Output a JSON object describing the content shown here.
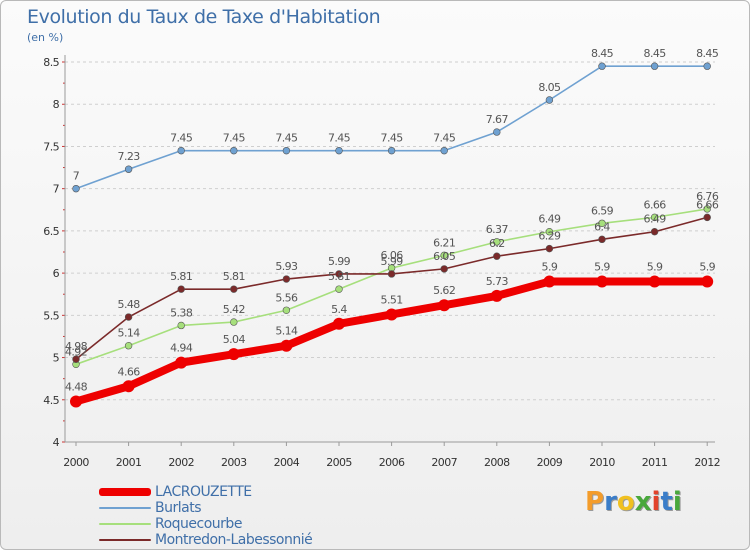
{
  "title": "Evolution du Taux de Taxe d'Habitation",
  "unit_label": "(en %)",
  "logo": {
    "text": "Proxiti",
    "letters": [
      {
        "ch": "P",
        "color": "#f39c2b"
      },
      {
        "ch": "r",
        "color": "#3a7dc9"
      },
      {
        "ch": "o",
        "color": "#f0c020"
      },
      {
        "ch": "x",
        "color": "#49a83c"
      },
      {
        "ch": "i",
        "color": "#e2432b"
      },
      {
        "ch": "t",
        "color": "#3a7dc9"
      },
      {
        "ch": "i",
        "color": "#49a83c"
      }
    ]
  },
  "chart_data": {
    "type": "line",
    "title": "Evolution du Taux de Taxe d'Habitation",
    "ylabel": "(en %)",
    "xlabel": "",
    "ylim": [
      4,
      8.5
    ],
    "y_ticks": [
      "4",
      "4.5",
      "5",
      "5.5",
      "6",
      "6.5",
      "7",
      "7.5",
      "8",
      "8.5"
    ],
    "x": [
      "2000",
      "2001",
      "2002",
      "2003",
      "2004",
      "2005",
      "2006",
      "2007",
      "2008",
      "2009",
      "2010",
      "2011",
      "2012"
    ],
    "grid": "horizontal dashed",
    "legend": "bottom-left",
    "series": [
      {
        "name": "LACROUZETTE",
        "color": "#ee0000",
        "thick": true,
        "values": [
          4.48,
          4.66,
          4.94,
          5.04,
          5.14,
          5.4,
          5.51,
          5.62,
          5.73,
          5.9,
          5.9,
          5.9,
          5.9
        ],
        "labels": [
          "4.48",
          "4.66",
          "4.94",
          "5.04",
          "5.14",
          "5.4",
          "5.51",
          "5.62",
          "5.73",
          "5.9",
          "5.9",
          "5.9",
          "5.9"
        ]
      },
      {
        "name": "Burlats",
        "color": "#6fa1d1",
        "thick": false,
        "values": [
          7,
          7.23,
          7.45,
          7.45,
          7.45,
          7.45,
          7.45,
          7.45,
          7.67,
          8.05,
          8.45,
          8.45,
          8.45
        ],
        "labels": [
          "7",
          "7.23",
          "7.45",
          "7.45",
          "7.45",
          "7.45",
          "7.45",
          "7.45",
          "7.67",
          "8.05",
          "8.45",
          "8.45",
          "8.45"
        ]
      },
      {
        "name": "Roquecourbe",
        "color": "#a6df7c",
        "thick": false,
        "values": [
          4.92,
          5.14,
          5.38,
          5.42,
          5.56,
          5.81,
          6.06,
          6.21,
          6.37,
          6.49,
          6.59,
          6.66,
          6.76
        ],
        "labels": [
          "4.92",
          "5.14",
          "5.38",
          "5.42",
          "5.56",
          "5.81",
          "6.06",
          "6.21",
          "6.37",
          "6.49",
          "6.59",
          "6.66",
          "6.76"
        ]
      },
      {
        "name": "Montredon-Labessonnié",
        "color": "#7b2a2a",
        "thick": false,
        "values": [
          4.98,
          5.48,
          5.81,
          5.81,
          5.93,
          5.99,
          5.99,
          6.05,
          6.2,
          6.29,
          6.4,
          6.49,
          6.66
        ],
        "labels": [
          "4.98",
          "5.48",
          "5.81",
          "5.81",
          "5.93",
          "5.99",
          "5.99",
          "6.05",
          "6.2",
          "6.29",
          "6.4",
          "6.49",
          "6.66"
        ]
      }
    ]
  }
}
